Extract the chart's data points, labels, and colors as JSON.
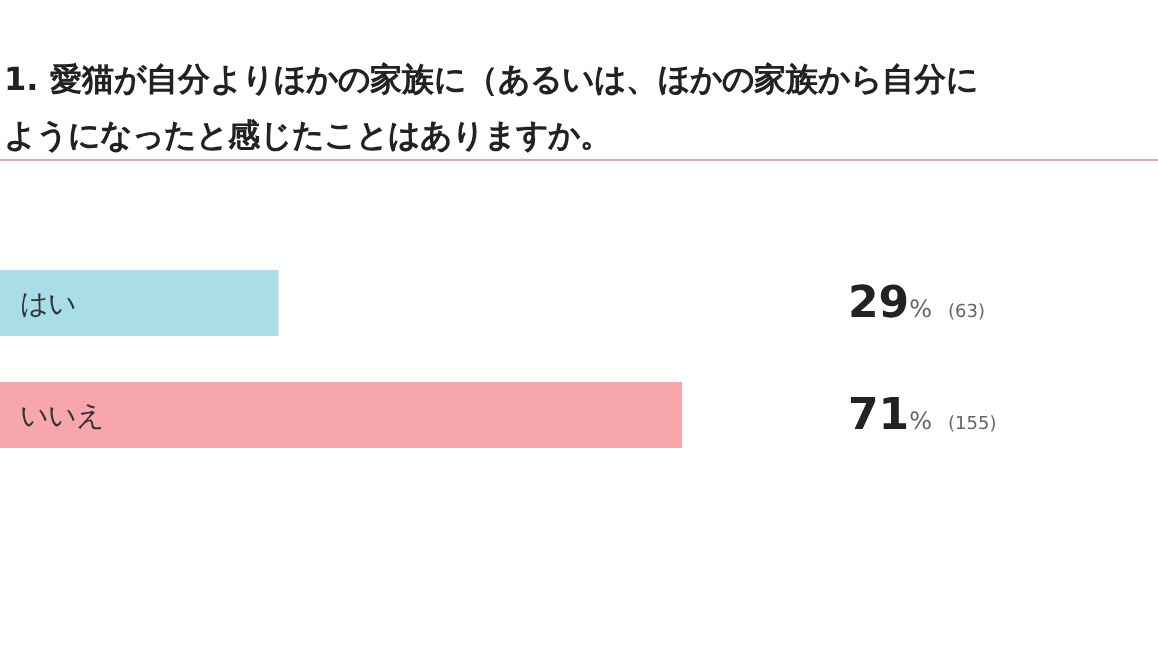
{
  "chart_data": {
    "type": "bar",
    "orientation": "horizontal",
    "title": "1. 愛猫が自分よりほかの家族に（あるいは、ほかの家族から自分にようになったと感じたことはありますか。",
    "categories": [
      "はい",
      "いいえ"
    ],
    "values": [
      29,
      71
    ],
    "colors": [
      "#a9dde7",
      "#f7a6ab"
    ],
    "value_labels": [
      "29% (63)",
      "71% (155)"
    ]
  }
}
